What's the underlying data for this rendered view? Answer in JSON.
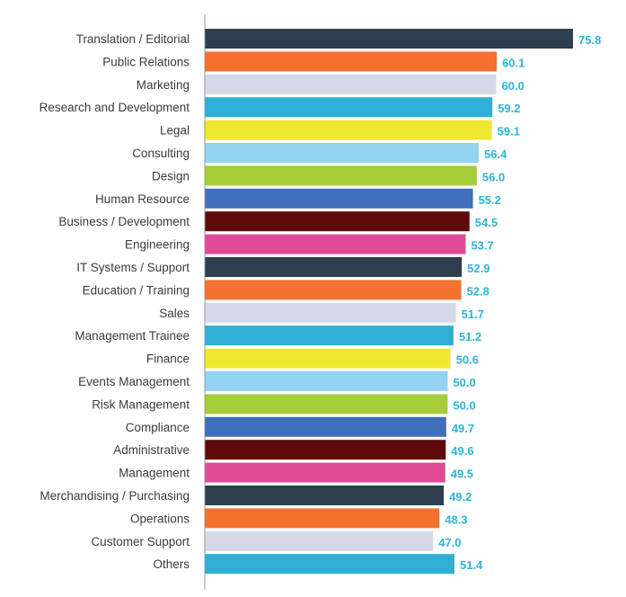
{
  "chart_data": {
    "type": "bar",
    "orientation": "horizontal",
    "title": "",
    "xlabel": "",
    "ylabel": "",
    "xlim": [
      0,
      75.8
    ],
    "grid": false,
    "legend": "none",
    "value_label_color": "#2bb5d8",
    "axis_color": "#9a9a9a",
    "categories": [
      "Translation / Editorial",
      "Public Relations",
      "Marketing",
      "Research and Development",
      "Legal",
      "Consulting",
      "Design",
      "Human Resource",
      "Business / Development",
      "Engineering",
      "IT Systems / Support",
      "Education / Training",
      "Sales",
      "Management Trainee",
      "Finance",
      "Events Management",
      "Risk Management",
      "Compliance",
      "Administrative",
      "Management",
      "Merchandising / Purchasing",
      "Operations",
      "Customer Support",
      "Others"
    ],
    "values": [
      75.8,
      60.1,
      60.0,
      59.2,
      59.1,
      56.4,
      56.0,
      55.2,
      54.5,
      53.7,
      52.9,
      52.8,
      51.7,
      51.2,
      50.6,
      50.0,
      50.0,
      49.7,
      49.6,
      49.5,
      49.2,
      48.3,
      47.0,
      51.4
    ],
    "value_labels": [
      "75.8",
      "60.1",
      "60.0",
      "59.2",
      "59.1",
      "56.4",
      "56.0",
      "55.2",
      "54.5",
      "53.7",
      "52.9",
      "52.8",
      "51.7",
      "51.2",
      "50.6",
      "50.0",
      "50.0",
      "49.7",
      "49.6",
      "49.5",
      "49.2",
      "48.3",
      "47.0",
      "51.4"
    ],
    "colors": [
      "#2e3e4c",
      "#f47230",
      "#d5d8e6",
      "#2fafd5",
      "#efe830",
      "#92d3f1",
      "#a7cc3a",
      "#3f6fba",
      "#5e0a0a",
      "#e14a96",
      "#2e3e4c",
      "#f47230",
      "#d5d8e6",
      "#2fafd5",
      "#efe830",
      "#92d3f1",
      "#a7cc3a",
      "#3f6fba",
      "#5e0a0a",
      "#e14a96",
      "#2e3e4c",
      "#f47230",
      "#d5d8e6",
      "#2fafd5"
    ]
  }
}
